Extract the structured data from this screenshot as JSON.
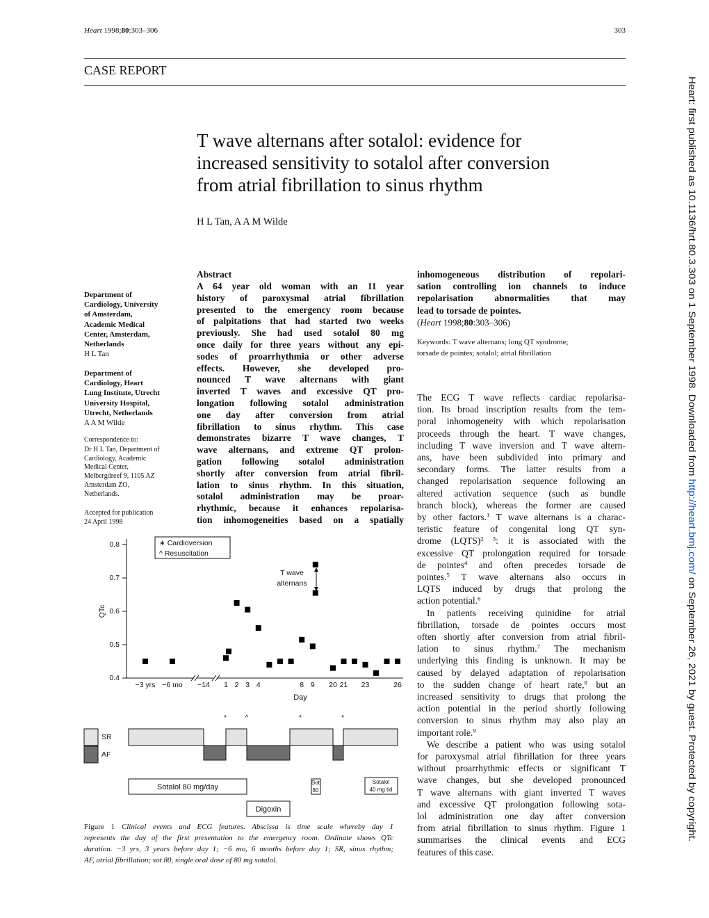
{
  "header": {
    "citation": [
      {
        "i": "Heart"
      },
      " 1998;",
      {
        "b": "80"
      },
      ":303–306"
    ],
    "page_number": "303"
  },
  "section": "CASE REPORT",
  "title": {
    "lines": [
      "T wave alternans after sotalol: evidence for",
      "increased sensitivity to sotalol after conversion",
      "from atrial fibrillation to sinus rhythm"
    ]
  },
  "authors": "H L Tan, A A M Wilde",
  "affiliations": [
    {
      "lines": [
        "Department of",
        "Cardiology, University",
        "of Amsterdam,",
        "Academic Medical",
        "Center, Amsterdam,",
        "Netherlands"
      ],
      "name": "H L Tan"
    },
    {
      "lines": [
        "Department of",
        "Cardiology, Heart",
        "Lung Institute, Utrecht",
        "University Hospital,",
        "Utrecht, Netherlands"
      ],
      "name": "A A M Wilde"
    }
  ],
  "correspondence": {
    "label": "Correspondence to:",
    "lines": [
      "Dr H L Tan, Department of",
      "Cardiology, Academic",
      "Medical Center,",
      "Meibergdreef 9, 1105 AZ",
      "Amsterdam ZO,",
      "Netherlands."
    ]
  },
  "accepted": [
    "Accepted for publication",
    "24 April 1998"
  ],
  "abstract": {
    "heading": "Abstract",
    "lines": [
      "A 64 year old woman with an 11 year",
      "history of paroxysmal atrial fibrillation",
      "presented to the emergency room because",
      "of palpitations that had started two weeks",
      "previously. She had used sotalol 80 mg",
      "once daily for three years without any epi-",
      "sodes of proarrhythmia or other adverse",
      "effects. However, she developed pro-",
      "nounced T wave alternans with giant",
      "inverted T waves and excessive QT pro-",
      "longation following sotalol administration",
      "one day after conversion from atrial",
      "fibrillation to sinus rhythm. This case",
      "demonstrates bizarre T wave changes, T",
      "wave alternans, and extreme QT prolon-",
      "gation following sotalol administration",
      "shortly after conversion from atrial fibril-",
      "lation to sinus rhythm. In this situation,",
      "sotalol administration may be proar-",
      "rhythmic, because it enhances repolarisa-",
      "tion inhomogeneities based on a spatially",
      "inhomogeneous distribution of repolari-",
      "sation controlling ion channels to induce",
      "repolarisation abnormalities that may",
      "lead to torsade de pointes."
    ],
    "citation": [
      "(",
      {
        "i": "Heart"
      },
      " 1998;",
      {
        "b": "80"
      },
      ":303–306)"
    ]
  },
  "keywords": [
    "Keywords: T wave alternans; long QT syndrome;",
    "torsade de pointes; sotalol; atrial fibrillation"
  ],
  "body": {
    "paragraphs": [
      [
        "The ECG T wave reflects cardiac repolarisa-",
        "tion. Its broad inscription results from the tem-",
        "poral inhomogeneity with which repolarisation",
        "proceeds through the heart. T wave changes,",
        "including T wave inversion and T wave altern-",
        "ans, have been subdivided into primary and",
        "secondary forms. The latter results from a",
        "changed repolarisation sequence following an",
        "altered activation sequence (such as bundle",
        "branch block), whereas the former are caused",
        [
          "by other factors.",
          {
            "sup": "1"
          },
          " T wave alternans is a charac-"
        ],
        "teristic feature of congenital long QT syn-",
        [
          "drome (LQTS)",
          {
            "sup": "2 3"
          },
          ": it is associated with the"
        ],
        "excessive QT prolongation required for torsade",
        [
          "de pointes",
          {
            "sup": "4"
          },
          " and often precedes torsade de"
        ],
        [
          "pointes.",
          {
            "sup": "5"
          },
          " T wave alternans also occurs in"
        ],
        "LQTS induced by drugs that prolong the",
        [
          "action potential.",
          {
            "sup": "6"
          }
        ]
      ],
      [
        "In patients receiving quinidine for atrial",
        "fibrillation, torsade de pointes occurs most",
        "often shortly after conversion from atrial fibril-",
        [
          "lation to sinus rhythm.",
          {
            "sup": "7"
          },
          " The mechanism"
        ],
        "underlying this finding is unknown. It may be",
        "caused by delayed adaptation of repolarisation",
        [
          "to the sudden change of heart rate,",
          {
            "sup": "8"
          },
          " but an"
        ],
        "increased sensitivity to drugs that prolong the",
        "action potential in the period shortly following",
        "conversion to sinus rhythm may also play an",
        [
          "important role.",
          {
            "sup": "9"
          }
        ]
      ],
      [
        "We describe a patient who was using sotalol",
        "for paroxysmal atrial fibrillation for three years",
        "without proarrhythmic effects or significant T",
        "wave changes, but she developed pronounced",
        "T wave alternans with giant inverted T waves",
        "and excessive QT prolongation following sota-",
        "lol administration one day after conversion",
        "from atrial fibrillation to sinus rhythm. Figure 1",
        "summarises the clinical events and ECG",
        "features of this case."
      ]
    ]
  },
  "figure": {
    "timeline": {
      "events": [
        "*",
        "^",
        "*",
        "*"
      ],
      "rhythms": [
        "SR",
        "AF"
      ],
      "drugs": [
        [
          "Sotalol 80 mg/day"
        ],
        [
          "Sot",
          "80"
        ],
        [
          "Sotalol",
          "40 mg tid"
        ],
        [
          "Digoxin"
        ]
      ]
    },
    "caption": {
      "label": "Figure 1",
      "lines": [
        "Clinical events and ECG features. Abscissa is time scale whereby day 1",
        "represents the day of the first presentation to the emergency room. Ordinate shows QTc",
        "duration. −3 yrs, 3 years before day 1; −6 mo, 6 months before day 1; SR, sinus rhythm;",
        "AF, atrial fibrillation; sot 80, single oral dose of 80 mg sotalol."
      ]
    }
  },
  "chart_data": {
    "type": "scatter",
    "x_label": "Day",
    "y_label": "QTc",
    "categories": [
      "−3 yrs",
      "−6 mo",
      "−14",
      "1",
      "2",
      "3",
      "4",
      null,
      null,
      null,
      "8",
      "9",
      "20",
      "21",
      null,
      "23",
      null,
      null,
      "26"
    ],
    "series": [
      {
        "color": "#000000",
        "values": [
          0.45,
          0.45,
          null,
          0.46,
          0.625,
          0.605,
          0.55,
          0.44,
          0.45,
          0.45,
          0.515,
          0.495,
          0.43,
          0.45,
          0.45,
          0.44,
          0.415,
          0.45,
          0.45
        ]
      },
      {
        "color": "#000000",
        "values": [
          null,
          null,
          null,
          0.48,
          null,
          null,
          null,
          null,
          null,
          null,
          null,
          0.74,
          null,
          null,
          null,
          null,
          null,
          null,
          null
        ]
      },
      {
        "color": "#000000",
        "values": [
          null,
          null,
          null,
          null,
          null,
          null,
          null,
          null,
          null,
          null,
          null,
          0.655,
          null,
          null,
          null,
          null,
          null,
          null,
          null
        ]
      }
    ],
    "ylim": [
      0.4,
      0.8
    ],
    "yticks": [
      0.4,
      0.5,
      0.6,
      0.7,
      0.8
    ],
    "key": [
      "∗ Cardioversion",
      "^ Resuscitation"
    ],
    "annotation": [
      "T wave",
      "alternans"
    ]
  },
  "side_note": [
    "Heart: first published as 10.1136/hrt.80.3.303 on 1 September 1998. Downloaded from ",
    "http://heart.bmj.com/",
    " on September 26, 2021 by guest. Protected by copyright."
  ]
}
